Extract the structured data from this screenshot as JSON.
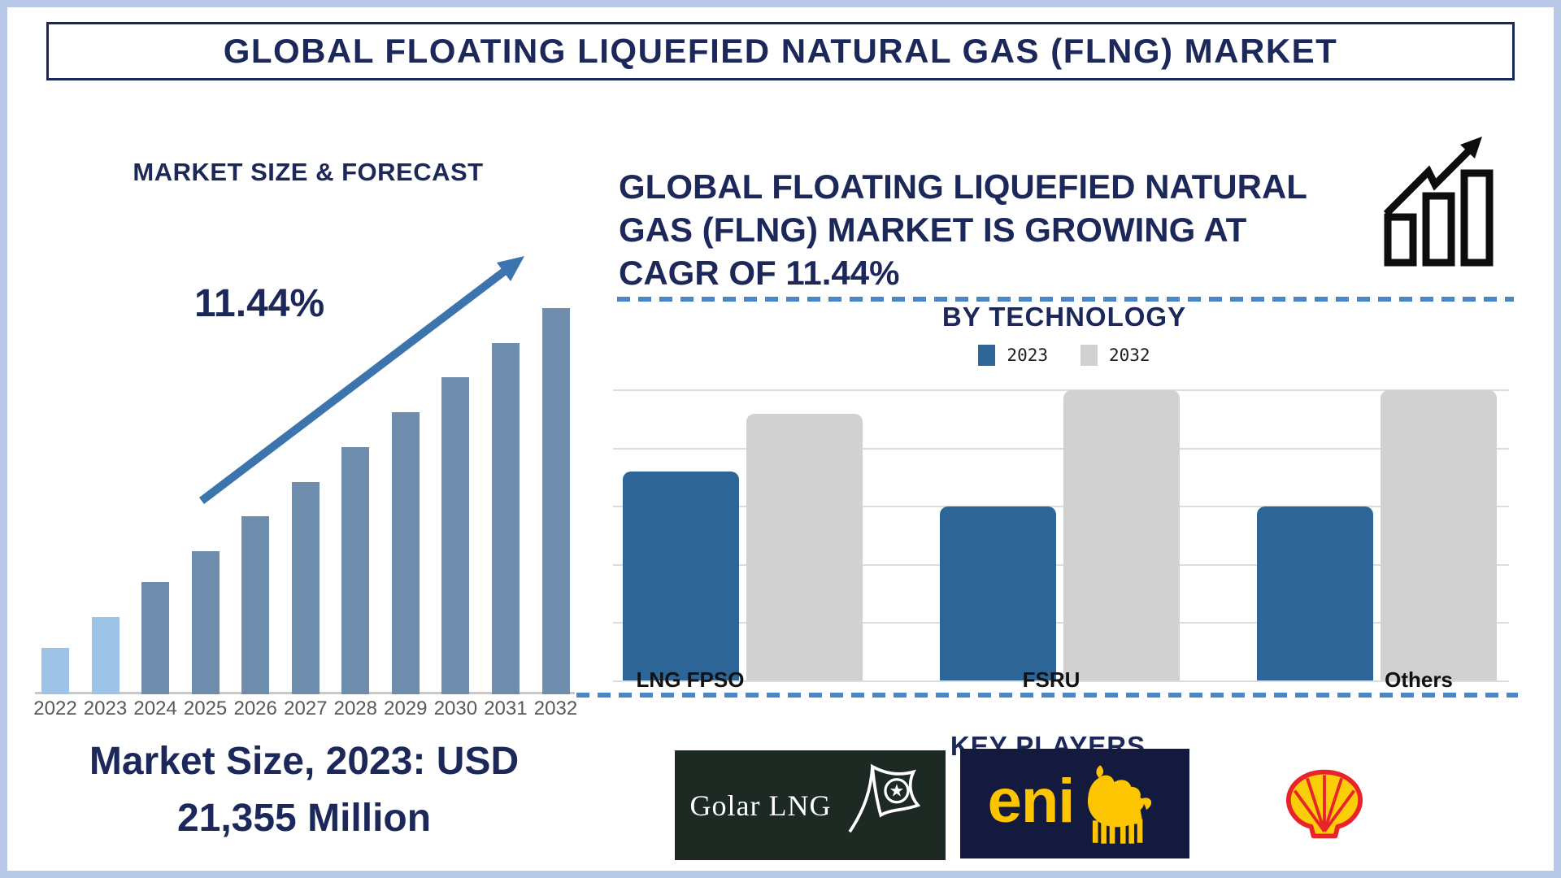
{
  "banner": {
    "title": "GLOBAL FLOATING LIQUEFIED NATURAL GAS (FLNG) MARKET"
  },
  "colors": {
    "navy": "#1b2859",
    "frame_blue": "#b7c9e6",
    "accent_blue": "#3c74ae",
    "dash_blue": "#4a86c8",
    "light_bar": "#9dc3e6",
    "dark_bar": "#6e8dac",
    "blue_2023": "#2d6596",
    "gray_2032": "#d1d1d1",
    "gridline": "#dcdcdc",
    "axis_gray": "#c8c8c8",
    "year_label": "#595959",
    "category_label": "#111111",
    "golar_bg": "#1d2a24",
    "eni_bg": "#141a3e",
    "eni_yellow": "#fdc400",
    "shell_red": "#e8232c",
    "shell_yellow": "#fbce07",
    "icon_black": "#0d0d0d"
  },
  "left_panel": {
    "title": "MARKET SIZE & FORECAST",
    "cagr_label": "11.44%",
    "market_size_note": {
      "line1": "Market Size, 2023: USD",
      "line2": "21,355 Million"
    }
  },
  "right_panel": {
    "headline": {
      "line1": "GLOBAL FLOATING LIQUEFIED NATURAL",
      "line2": "GAS (FLNG) MARKET IS GROWING AT",
      "line3": "CAGR OF 11.44%"
    },
    "section_by_technology": {
      "title": "BY TECHNOLOGY"
    },
    "key_players": {
      "title": "KEY PLAYERS",
      "players": [
        {
          "name": "Golar LNG",
          "logo_text": "Golar LNG"
        },
        {
          "name": "Eni",
          "logo_text": "eni"
        },
        {
          "name": "Shell"
        }
      ]
    }
  },
  "chart_data": [
    {
      "type": "bar",
      "title": "MARKET SIZE & FORECAST",
      "categories": [
        "2022",
        "2023",
        "2024",
        "2025",
        "2026",
        "2027",
        "2028",
        "2029",
        "2030",
        "2031",
        "2032"
      ],
      "values_pct_of_max": [
        12,
        20,
        29,
        37,
        46,
        55,
        64,
        73,
        82,
        91,
        100
      ],
      "highlight_categories": [
        "2022",
        "2023"
      ],
      "annotation": "11.44%",
      "note": "Market Size, 2023: USD 21,355 Million",
      "xlabel": "",
      "ylabel": "",
      "grid": false,
      "axis_values_shown": false
    },
    {
      "type": "bar",
      "title": "BY TECHNOLOGY",
      "categories": [
        "LNG FPSO",
        "FSRU",
        "Others"
      ],
      "series": [
        {
          "name": "2023",
          "values_pct_of_max": [
            72,
            60,
            60
          ]
        },
        {
          "name": "2032",
          "values_pct_of_max": [
            92,
            100,
            100
          ]
        }
      ],
      "legend_position": "top",
      "grid": true,
      "axis_values_shown": false
    }
  ]
}
